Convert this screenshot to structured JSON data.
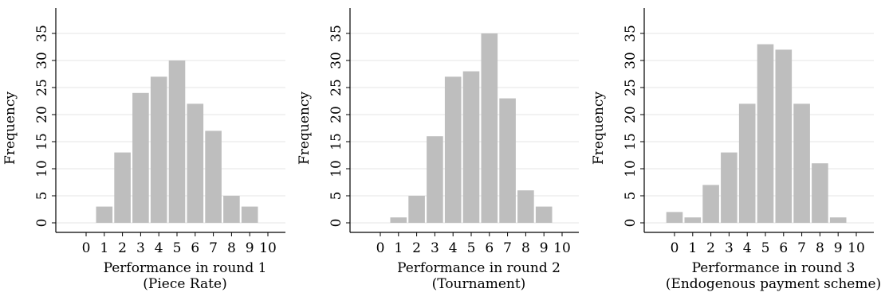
{
  "chart_data": [
    {
      "type": "bar",
      "categories": [
        "0",
        "1",
        "2",
        "3",
        "4",
        "5",
        "6",
        "7",
        "8",
        "9",
        "10"
      ],
      "values": [
        0,
        3,
        13,
        24,
        27,
        30,
        22,
        17,
        5,
        3,
        0
      ],
      "xlabel": "Performance in round 1",
      "xlabel2": "(Piece Rate)",
      "ylabel": "Frequency",
      "ylim": [
        0,
        38
      ],
      "yticks": [
        0,
        5,
        10,
        15,
        20,
        25,
        30,
        35
      ],
      "xticks": [
        "0",
        "1",
        "2",
        "3",
        "4",
        "5",
        "6",
        "7",
        "8",
        "9",
        "10"
      ],
      "grid": true
    },
    {
      "type": "bar",
      "categories": [
        "0",
        "1",
        "2",
        "3",
        "4",
        "5",
        "6",
        "7",
        "8",
        "9",
        "10"
      ],
      "values": [
        0,
        1,
        5,
        16,
        27,
        28,
        35,
        23,
        6,
        3,
        0
      ],
      "xlabel": "Performance in round 2",
      "xlabel2": "(Tournament)",
      "ylabel": "Frequency",
      "ylim": [
        0,
        38
      ],
      "yticks": [
        0,
        5,
        10,
        15,
        20,
        25,
        30,
        35
      ],
      "xticks": [
        "0",
        "1",
        "2",
        "3",
        "4",
        "5",
        "6",
        "7",
        "8",
        "9",
        "10"
      ],
      "grid": true
    },
    {
      "type": "bar",
      "categories": [
        "0",
        "1",
        "2",
        "3",
        "4",
        "5",
        "6",
        "7",
        "8",
        "9",
        "10"
      ],
      "values": [
        2,
        1,
        7,
        13,
        22,
        33,
        32,
        22,
        11,
        1,
        0
      ],
      "xlabel": "Performance in round 3",
      "xlabel2": "(Endogenous payment scheme)",
      "ylabel": "Frequency",
      "ylim": [
        0,
        38
      ],
      "yticks": [
        0,
        5,
        10,
        15,
        20,
        25,
        30,
        35
      ],
      "xticks": [
        "0",
        "1",
        "2",
        "3",
        "4",
        "5",
        "6",
        "7",
        "8",
        "9",
        "10"
      ],
      "grid": true
    }
  ],
  "colors": {
    "bar": "#bebebe",
    "grid": "#e4e4e4",
    "axis": "#000000"
  }
}
